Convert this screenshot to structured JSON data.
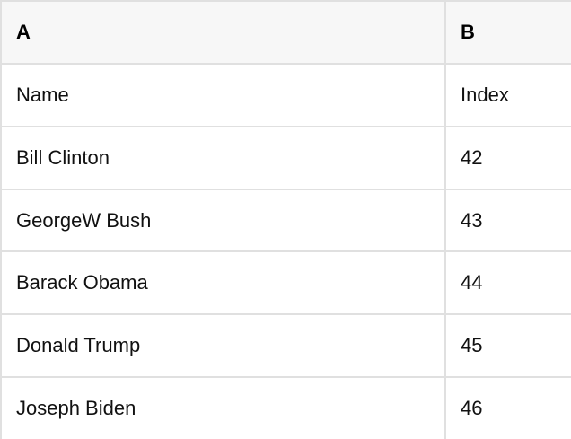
{
  "table": {
    "columns": [
      {
        "key": "A",
        "label": "A"
      },
      {
        "key": "B",
        "label": "B"
      }
    ],
    "rows": [
      [
        "Name",
        "Index"
      ],
      [
        "Bill Clinton",
        "42"
      ],
      [
        "GeorgeW Bush",
        "43"
      ],
      [
        "Barack Obama",
        "44"
      ],
      [
        "Donald Trump",
        "45"
      ],
      [
        "Joseph Biden",
        "46"
      ]
    ]
  },
  "colors": {
    "header_bg": "#f7f7f7",
    "border": "#e0e0e0",
    "text": "#111111",
    "row_bg": "#ffffff"
  }
}
